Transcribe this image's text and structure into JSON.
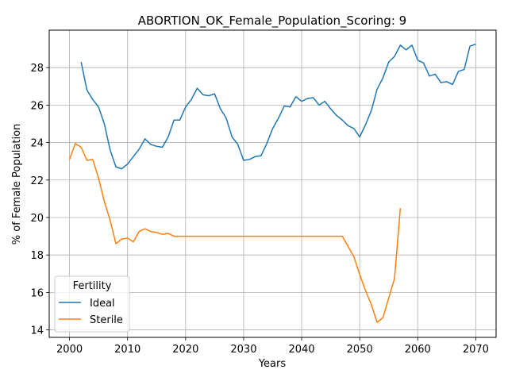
{
  "chart_data": {
    "type": "line",
    "title": "ABORTION_OK_Female_Population_Scoring: 9",
    "xlabel": "Years",
    "ylabel": "% of Female Population",
    "xlim": [
      1996.5,
      2073.5
    ],
    "ylim": [
      13.6,
      30.0
    ],
    "xticks": [
      2000,
      2010,
      2020,
      2030,
      2040,
      2050,
      2060,
      2070
    ],
    "yticks": [
      14,
      16,
      18,
      20,
      22,
      24,
      26,
      28
    ],
    "grid": true,
    "legend": {
      "title": "Fertility",
      "location": "lower left"
    },
    "series": [
      {
        "name": "Ideal",
        "color": "#1f77b4",
        "x": [
          2002,
          2003,
          2004,
          2005,
          2006,
          2007,
          2008,
          2009,
          2010,
          2011,
          2012,
          2013,
          2014,
          2015,
          2016,
          2017,
          2018,
          2019,
          2020,
          2021,
          2022,
          2023,
          2024,
          2025,
          2026,
          2027,
          2028,
          2029,
          2030,
          2031,
          2032,
          2033,
          2034,
          2035,
          2036,
          2037,
          2038,
          2039,
          2040,
          2041,
          2042,
          2043,
          2044,
          2045,
          2046,
          2047,
          2048,
          2049,
          2050,
          2051,
          2052,
          2053,
          2054,
          2055,
          2056,
          2057,
          2058,
          2059,
          2060,
          2061,
          2062,
          2063,
          2064,
          2065,
          2066,
          2067,
          2068,
          2069,
          2070
        ],
        "y": [
          28.3,
          26.8,
          26.3,
          25.9,
          25.0,
          23.6,
          22.7,
          22.6,
          22.85,
          23.25,
          23.65,
          24.2,
          23.9,
          23.8,
          23.75,
          24.3,
          25.2,
          25.2,
          25.9,
          26.3,
          26.9,
          26.55,
          26.5,
          26.6,
          25.8,
          25.3,
          24.3,
          23.9,
          23.05,
          23.1,
          23.25,
          23.3,
          23.95,
          24.75,
          25.3,
          25.95,
          25.9,
          26.45,
          26.2,
          26.35,
          26.4,
          26.0,
          26.2,
          25.8,
          25.45,
          25.2,
          24.9,
          24.75,
          24.3,
          24.95,
          25.7,
          26.85,
          27.45,
          28.3,
          28.6,
          29.2,
          28.95,
          29.2,
          28.4,
          28.25,
          27.55,
          27.65,
          27.2,
          27.25,
          27.1,
          27.8,
          27.9,
          29.15,
          29.25
        ]
      },
      {
        "name": "Sterile",
        "color": "#ff7f0e",
        "x": [
          2000,
          2001,
          2002,
          2003,
          2004,
          2005,
          2006,
          2007,
          2008,
          2009,
          2010,
          2011,
          2012,
          2013,
          2014,
          2015,
          2016,
          2017,
          2018,
          2019,
          2020,
          2021,
          2022,
          2023,
          2024,
          2025,
          2026,
          2027,
          2028,
          2029,
          2030,
          2031,
          2032,
          2033,
          2034,
          2035,
          2036,
          2037,
          2038,
          2039,
          2040,
          2041,
          2042,
          2043,
          2044,
          2045,
          2046,
          2047,
          2048,
          2049,
          2050,
          2051,
          2052,
          2053,
          2054,
          2055,
          2056,
          2057
        ],
        "y": [
          23.1,
          23.95,
          23.75,
          23.05,
          23.1,
          22.1,
          20.85,
          19.85,
          18.6,
          18.85,
          18.9,
          18.7,
          19.25,
          19.4,
          19.25,
          19.2,
          19.1,
          19.15,
          19.0,
          19.0,
          19.0,
          19.0,
          19.0,
          19.0,
          19.0,
          19.0,
          19.0,
          19.0,
          19.0,
          19.0,
          19.0,
          19.0,
          19.0,
          19.0,
          19.0,
          19.0,
          19.0,
          19.0,
          19.0,
          19.0,
          19.0,
          19.0,
          19.0,
          19.0,
          19.0,
          19.0,
          19.0,
          19.0,
          18.45,
          17.9,
          16.95,
          16.1,
          15.35,
          14.4,
          14.65,
          15.7,
          16.75,
          20.5
        ]
      }
    ]
  }
}
